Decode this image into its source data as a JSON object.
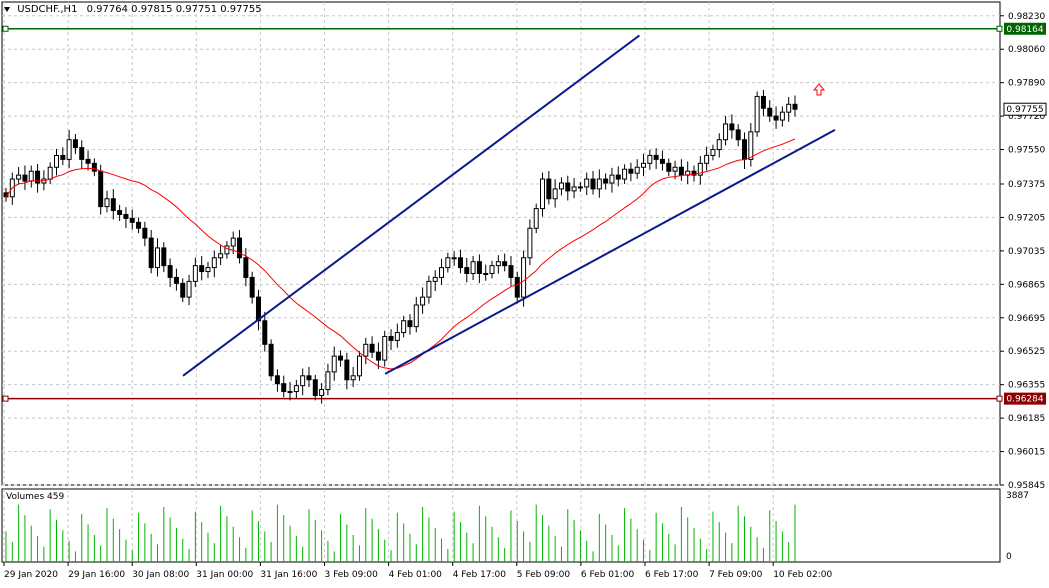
{
  "header": {
    "symbol": "USDCHF.,H1",
    "ohlc": "0.97764 0.97815 0.97751 0.97755"
  },
  "volumes": {
    "label": "Volumes 459",
    "max_label": "3887",
    "zero_label": "0"
  },
  "colors": {
    "bull": "#000000",
    "bear": "#000000",
    "ma": "#ff0000",
    "channel": "#0a1a8c",
    "volume": "#00b400",
    "green_line": "#006400",
    "red_line": "#8b0000",
    "grid": "#c8c8c8",
    "arrow": "#ff0000"
  },
  "icons": {
    "dropdown": "triangle-down-icon",
    "signal": "up-arrow-icon"
  },
  "price_axis_ticks": [
    "0.98230",
    "0.98060",
    "0.97890",
    "0.97720",
    "0.97550",
    "0.97375",
    "0.97205",
    "0.97035",
    "0.96865",
    "0.96695",
    "0.96525",
    "0.96355",
    "0.96185",
    "0.96015",
    "0.95845"
  ],
  "time_axis_ticks": [
    "29 Jan 2020",
    "29 Jan 16:00",
    "30 Jan 08:00",
    "31 Jan 00:00",
    "31 Jan 16:00",
    "3 Feb 09:00",
    "4 Feb 01:00",
    "4 Feb 17:00",
    "5 Feb 09:00",
    "6 Feb 01:00",
    "6 Feb 17:00",
    "7 Feb 09:00",
    "10 Feb 02:00"
  ],
  "horizontal_lines": [
    {
      "name": "resistance-line",
      "price": 0.98164,
      "label": "0.98164",
      "color": "#006400"
    },
    {
      "name": "support-line",
      "price": 0.96284,
      "label": "0.96284",
      "color": "#8b0000"
    }
  ],
  "current_price": {
    "label": "0.97755",
    "price": 0.97755
  },
  "chart_data": {
    "type": "candlestick",
    "symbol": "USDCHF.",
    "timeframe": "H1",
    "ylim": [
      0.95845,
      0.983
    ],
    "channel": {
      "upper": [
        [
          0.964,
          0.0
        ],
        [
          0.9813,
          0.7
        ]
      ],
      "lower": [
        [
          0.9641,
          0.31
        ],
        [
          0.9765,
          1.0
        ]
      ]
    },
    "closes": [
      0.9731,
      0.974,
      0.9742,
      0.9739,
      0.9744,
      0.9738,
      0.974,
      0.9746,
      0.9752,
      0.975,
      0.976,
      0.9756,
      0.975,
      0.9748,
      0.9744,
      0.9726,
      0.973,
      0.9724,
      0.9722,
      0.972,
      0.9718,
      0.9715,
      0.971,
      0.9695,
      0.9705,
      0.9696,
      0.969,
      0.9687,
      0.968,
      0.9688,
      0.9696,
      0.9693,
      0.9695,
      0.97,
      0.9702,
      0.9706,
      0.971,
      0.97,
      0.969,
      0.968,
      0.9668,
      0.9656,
      0.964,
      0.9636,
      0.9632,
      0.9632,
      0.9635,
      0.964,
      0.9638,
      0.963,
      0.9633,
      0.9642,
      0.965,
      0.9648,
      0.9638,
      0.964,
      0.965,
      0.9656,
      0.9652,
      0.9648,
      0.966,
      0.9658,
      0.9662,
      0.9668,
      0.9665,
      0.9676,
      0.968,
      0.9688,
      0.969,
      0.9695,
      0.97,
      0.97,
      0.9695,
      0.9692,
      0.9698,
      0.9692,
      0.9692,
      0.9696,
      0.9698,
      0.9696,
      0.969,
      0.968,
      0.97,
      0.9715,
      0.9725,
      0.974,
      0.973,
      0.9735,
      0.9738,
      0.9734,
      0.9736,
      0.9736,
      0.974,
      0.9735,
      0.974,
      0.9738,
      0.9742,
      0.974,
      0.9745,
      0.9743,
      0.9746,
      0.9748,
      0.9752,
      0.975,
      0.9748,
      0.9744,
      0.9746,
      0.9742,
      0.9744,
      0.9742,
      0.9748,
      0.9752,
      0.9755,
      0.976,
      0.9768,
      0.9765,
      0.976,
      0.975,
      0.9764,
      0.9782,
      0.9776,
      0.9772,
      0.977,
      0.9774,
      0.9778,
      0.97755
    ],
    "ma_period": 21,
    "volumes_max": 3887
  }
}
